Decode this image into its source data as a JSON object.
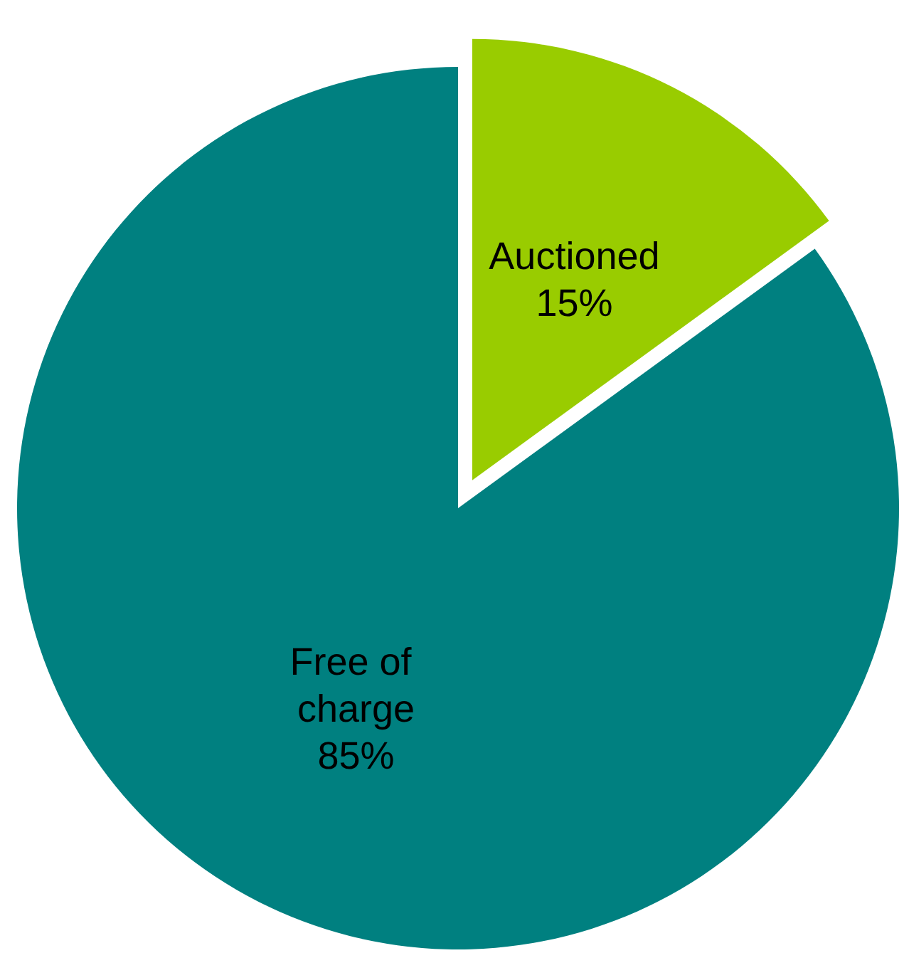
{
  "chart_data": {
    "type": "pie",
    "categories": [
      "Auctioned",
      "Free of charge"
    ],
    "values": [
      15,
      85
    ],
    "colors": [
      "#99cc00",
      "#008080"
    ],
    "value_labels": [
      "15%",
      "85%"
    ],
    "legend": false
  }
}
